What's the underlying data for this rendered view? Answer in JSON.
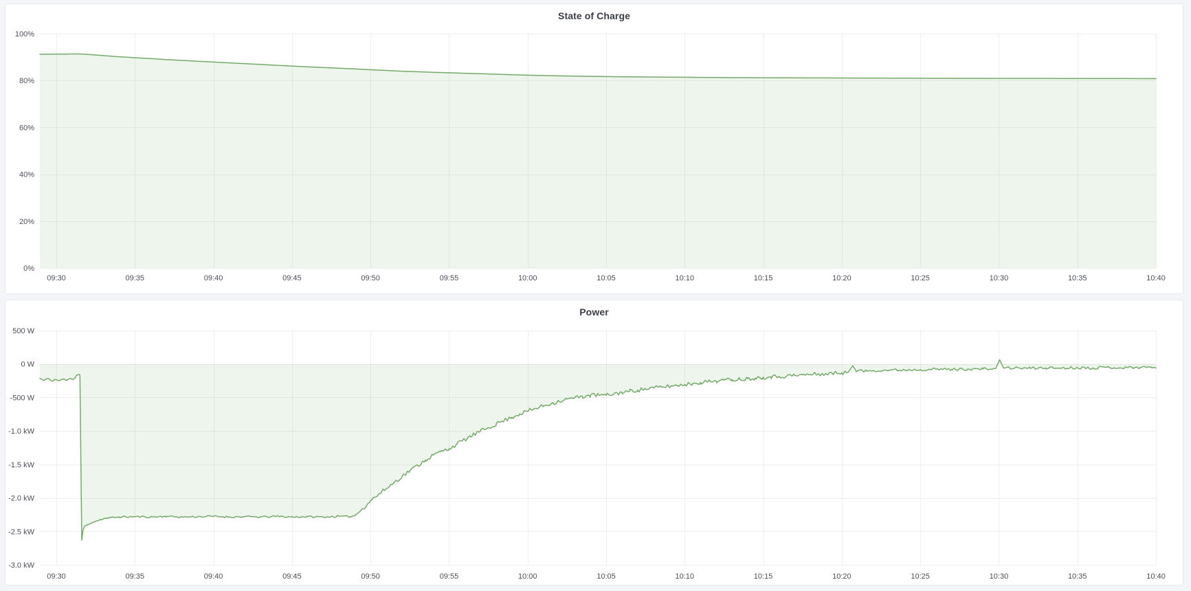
{
  "colors": {
    "page_bg": "#f4f5f9",
    "panel_bg": "#ffffff",
    "panel_border": "#e4e7ec",
    "grid": "#202230",
    "grid_opacity": 0.075,
    "axis_text": "#4c4e57",
    "title_text": "#3a3d46",
    "series_line": "#74a96a",
    "series_fill": "rgba(116,169,106,0.12)"
  },
  "chart_data": [
    {
      "type": "area",
      "title": "State of Charge",
      "xlabel": "",
      "ylabel": "",
      "unit": "%",
      "ylim": [
        0,
        100
      ],
      "x_domain": [
        -1.05,
        70
      ],
      "grid": true,
      "legend": "none",
      "baseline": 0,
      "y_ticks": [
        {
          "value": 100,
          "label": "100%"
        },
        {
          "value": 80,
          "label": "80%"
        },
        {
          "value": 60,
          "label": "60%"
        },
        {
          "value": 40,
          "label": "40%"
        },
        {
          "value": 20,
          "label": "20%"
        },
        {
          "value": 0,
          "label": "0%"
        }
      ],
      "x_ticks": [
        {
          "t": 0,
          "label": "09:30"
        },
        {
          "t": 5,
          "label": "09:35"
        },
        {
          "t": 10,
          "label": "09:40"
        },
        {
          "t": 15,
          "label": "09:45"
        },
        {
          "t": 20,
          "label": "09:50"
        },
        {
          "t": 25,
          "label": "09:55"
        },
        {
          "t": 30,
          "label": "10:00"
        },
        {
          "t": 35,
          "label": "10:05"
        },
        {
          "t": 40,
          "label": "10:10"
        },
        {
          "t": 45,
          "label": "10:15"
        },
        {
          "t": 50,
          "label": "10:20"
        },
        {
          "t": 55,
          "label": "10:25"
        },
        {
          "t": 60,
          "label": "10:30"
        },
        {
          "t": 65,
          "label": "10:35"
        },
        {
          "t": 70,
          "label": "10:40"
        }
      ],
      "series": [
        {
          "points": [
            [
              -1.05,
              91.2
            ],
            [
              0,
              91.25
            ],
            [
              0.5,
              91.3
            ],
            [
              1,
              91.35
            ],
            [
              1.5,
              91.35
            ],
            [
              2,
              91.15
            ],
            [
              2.5,
              90.9
            ],
            [
              3,
              90.65
            ],
            [
              3.5,
              90.4
            ],
            [
              4,
              90.15
            ],
            [
              4.5,
              89.95
            ],
            [
              5,
              89.75
            ],
            [
              6,
              89.35
            ],
            [
              7,
              88.95
            ],
            [
              8,
              88.6
            ],
            [
              9,
              88.25
            ],
            [
              10,
              87.9
            ],
            [
              11,
              87.55
            ],
            [
              12,
              87.2
            ],
            [
              13,
              86.85
            ],
            [
              14,
              86.5
            ],
            [
              15,
              86.2
            ],
            [
              16,
              85.85
            ],
            [
              17,
              85.55
            ],
            [
              18,
              85.25
            ],
            [
              19,
              84.95
            ],
            [
              20,
              84.6
            ],
            [
              21,
              84.3
            ],
            [
              22,
              84.0
            ],
            [
              23,
              83.75
            ],
            [
              24,
              83.5
            ],
            [
              25,
              83.3
            ],
            [
              26,
              83.1
            ],
            [
              27,
              82.9
            ],
            [
              28,
              82.7
            ],
            [
              29,
              82.5
            ],
            [
              30,
              82.3
            ],
            [
              31,
              82.15
            ],
            [
              32,
              82.0
            ],
            [
              33,
              81.9
            ],
            [
              34,
              81.8
            ],
            [
              35,
              81.7
            ],
            [
              36,
              81.62
            ],
            [
              37,
              81.55
            ],
            [
              38,
              81.5
            ],
            [
              39,
              81.45
            ],
            [
              40,
              81.4
            ],
            [
              41,
              81.35
            ],
            [
              42,
              81.3
            ],
            [
              43,
              81.27
            ],
            [
              44,
              81.24
            ],
            [
              45,
              81.2
            ],
            [
              46,
              81.17
            ],
            [
              47,
              81.14
            ],
            [
              48,
              81.12
            ],
            [
              49,
              81.1
            ],
            [
              50,
              81.08
            ],
            [
              52,
              81.05
            ],
            [
              54,
              81.0
            ],
            [
              56,
              80.97
            ],
            [
              58,
              80.95
            ],
            [
              60,
              80.92
            ],
            [
              62,
              80.9
            ],
            [
              64,
              80.88
            ],
            [
              66,
              80.87
            ],
            [
              68,
              80.85
            ],
            [
              70,
              80.83
            ]
          ]
        }
      ]
    },
    {
      "type": "area",
      "title": "Power",
      "xlabel": "",
      "ylabel": "",
      "unit": "W",
      "ylim": [
        -3000,
        500
      ],
      "x_domain": [
        -1.05,
        70
      ],
      "grid": true,
      "legend": "none",
      "baseline": 0,
      "y_ticks": [
        {
          "value": 500,
          "label": "500 W"
        },
        {
          "value": 0,
          "label": "0 W"
        },
        {
          "value": -500,
          "label": "-500 W"
        },
        {
          "value": -1000,
          "label": "-1.0 kW"
        },
        {
          "value": -1500,
          "label": "-1.5 kW"
        },
        {
          "value": -2000,
          "label": "-2.0 kW"
        },
        {
          "value": -2500,
          "label": "-2.5 kW"
        },
        {
          "value": -3000,
          "label": "-3.0 kW"
        }
      ],
      "x_ticks": [
        {
          "t": 0,
          "label": "09:30"
        },
        {
          "t": 5,
          "label": "09:35"
        },
        {
          "t": 10,
          "label": "09:40"
        },
        {
          "t": 15,
          "label": "09:45"
        },
        {
          "t": 20,
          "label": "09:50"
        },
        {
          "t": 25,
          "label": "09:55"
        },
        {
          "t": 30,
          "label": "10:00"
        },
        {
          "t": 35,
          "label": "10:05"
        },
        {
          "t": 40,
          "label": "10:10"
        },
        {
          "t": 45,
          "label": "10:15"
        },
        {
          "t": 50,
          "label": "10:20"
        },
        {
          "t": 55,
          "label": "10:25"
        },
        {
          "t": 60,
          "label": "10:30"
        },
        {
          "t": 65,
          "label": "10:35"
        },
        {
          "t": 70,
          "label": "10:40"
        }
      ],
      "noise": {
        "seed": 11,
        "step_min": 0.12,
        "ranges": [
          [
            -1.05,
            1.45,
            12
          ],
          [
            2.6,
            18.9,
            13
          ],
          [
            19.2,
            50.3,
            30
          ],
          [
            50.9,
            59.7,
            20
          ],
          [
            60.4,
            69.9,
            20
          ]
        ]
      },
      "series": [
        {
          "points": [
            [
              -1.05,
              -215
            ],
            [
              -0.8,
              -245
            ],
            [
              -0.55,
              -215
            ],
            [
              -0.3,
              -255
            ],
            [
              -0.1,
              -230
            ],
            [
              0.15,
              -250
            ],
            [
              0.4,
              -225
            ],
            [
              0.65,
              -245
            ],
            [
              0.9,
              -215
            ],
            [
              1.1,
              -225
            ],
            [
              1.3,
              -165
            ],
            [
              1.45,
              -155
            ],
            [
              1.5,
              -170
            ],
            [
              1.55,
              -1200
            ],
            [
              1.62,
              -2630
            ],
            [
              1.7,
              -2480
            ],
            [
              1.8,
              -2420
            ],
            [
              2.0,
              -2400
            ],
            [
              2.3,
              -2370
            ],
            [
              2.6,
              -2340
            ],
            [
              3.0,
              -2310
            ],
            [
              3.5,
              -2295
            ],
            [
              4,
              -2285
            ],
            [
              5,
              -2280
            ],
            [
              6,
              -2285
            ],
            [
              7,
              -2275
            ],
            [
              8,
              -2285
            ],
            [
              9,
              -2280
            ],
            [
              10,
              -2275
            ],
            [
              11,
              -2285
            ],
            [
              12,
              -2280
            ],
            [
              13,
              -2285
            ],
            [
              14,
              -2275
            ],
            [
              15,
              -2285
            ],
            [
              16,
              -2280
            ],
            [
              17,
              -2285
            ],
            [
              18,
              -2275
            ],
            [
              18.7,
              -2280
            ],
            [
              19,
              -2265
            ],
            [
              19.5,
              -2160
            ],
            [
              20,
              -2040
            ],
            [
              20.5,
              -1950
            ],
            [
              21,
              -1860
            ],
            [
              21.5,
              -1770
            ],
            [
              22,
              -1680
            ],
            [
              22.5,
              -1595
            ],
            [
              23,
              -1515
            ],
            [
              23.5,
              -1435
            ],
            [
              24,
              -1360
            ],
            [
              24.5,
              -1305
            ],
            [
              25,
              -1265
            ],
            [
              25.5,
              -1195
            ],
            [
              26,
              -1130
            ],
            [
              26.5,
              -1065
            ],
            [
              27,
              -1005
            ],
            [
              27.5,
              -950
            ],
            [
              28,
              -895
            ],
            [
              28.5,
              -845
            ],
            [
              29,
              -795
            ],
            [
              29.5,
              -745
            ],
            [
              30,
              -705
            ],
            [
              30.5,
              -665
            ],
            [
              31,
              -625
            ],
            [
              31.5,
              -590
            ],
            [
              32,
              -555
            ],
            [
              32.5,
              -525
            ],
            [
              33,
              -505
            ],
            [
              33.5,
              -485
            ],
            [
              34,
              -470
            ],
            [
              34.5,
              -462
            ],
            [
              35,
              -468
            ],
            [
              35.5,
              -445
            ],
            [
              36,
              -425
            ],
            [
              36.5,
              -405
            ],
            [
              37,
              -390
            ],
            [
              37.5,
              -372
            ],
            [
              38,
              -358
            ],
            [
              38.5,
              -345
            ],
            [
              39,
              -332
            ],
            [
              39.5,
              -320
            ],
            [
              40,
              -305
            ],
            [
              40.5,
              -292
            ],
            [
              41,
              -275
            ],
            [
              41.5,
              -262
            ],
            [
              42,
              -252
            ],
            [
              42.5,
              -242
            ],
            [
              43,
              -232
            ],
            [
              43.5,
              -225
            ],
            [
              44,
              -218
            ],
            [
              44.5,
              -210
            ],
            [
              45,
              -198
            ],
            [
              45.5,
              -192
            ],
            [
              46,
              -185
            ],
            [
              46.5,
              -178
            ],
            [
              47,
              -172
            ],
            [
              47.5,
              -163
            ],
            [
              48,
              -157
            ],
            [
              48.5,
              -152
            ],
            [
              49,
              -147
            ],
            [
              49.5,
              -140
            ],
            [
              50,
              -132
            ],
            [
              50.4,
              -126
            ],
            [
              50.7,
              -25
            ],
            [
              50.9,
              -100
            ],
            [
              51.5,
              -105
            ],
            [
              52,
              -95
            ],
            [
              53,
              -92
            ],
            [
              54,
              -88
            ],
            [
              55,
              -82
            ],
            [
              56,
              -78
            ],
            [
              57,
              -80
            ],
            [
              58,
              -76
            ],
            [
              59,
              -74
            ],
            [
              59.8,
              -68
            ],
            [
              60.05,
              65
            ],
            [
              60.3,
              -60
            ],
            [
              61,
              -60
            ],
            [
              62,
              -62
            ],
            [
              63,
              -58
            ],
            [
              64,
              -60
            ],
            [
              65,
              -55
            ],
            [
              66,
              -57
            ],
            [
              67,
              -50
            ],
            [
              68,
              -55
            ],
            [
              69,
              -50
            ],
            [
              69.7,
              -45
            ],
            [
              70,
              -60
            ]
          ]
        }
      ]
    }
  ]
}
